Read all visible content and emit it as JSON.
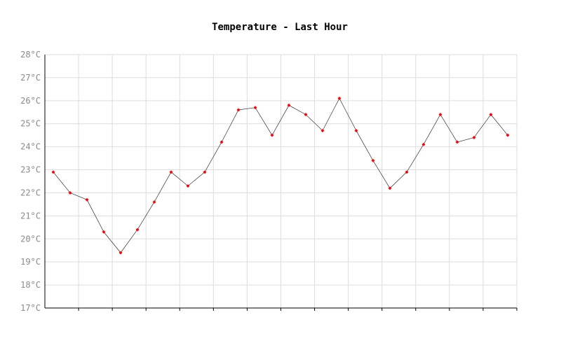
{
  "chart_data": {
    "type": "line",
    "title": "Temperature - Last Hour",
    "xlabel": "",
    "ylabel": "",
    "unit": "°C",
    "ylim": [
      17,
      28
    ],
    "y_ticks": [
      "17°C",
      "18°C",
      "19°C",
      "20°C",
      "21°C",
      "22°C",
      "23°C",
      "24°C",
      "25°C",
      "26°C",
      "27°C",
      "28°C"
    ],
    "x_tick_count": 14,
    "grid": true,
    "legend": "none",
    "series": [
      {
        "values": [
          22.9,
          22.0,
          21.7,
          20.3,
          19.4,
          20.4,
          21.6,
          22.9,
          22.3,
          22.9,
          24.2,
          25.6,
          25.7,
          24.5,
          25.8,
          25.4,
          24.7,
          26.1,
          24.7,
          23.4,
          22.2,
          22.9,
          24.1,
          25.4,
          24.2,
          24.4,
          25.4,
          24.5
        ]
      }
    ],
    "colors": {
      "line": "#333333",
      "marker": "#ff0000",
      "grid": "#dddddd",
      "axis": "#000000"
    }
  }
}
